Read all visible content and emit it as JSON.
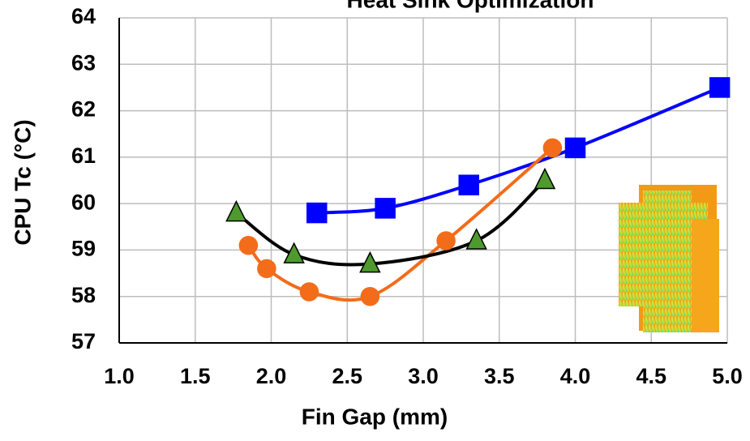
{
  "chart_data": {
    "type": "line",
    "title": "Heat Sink Optimization",
    "xlabel": "Fin Gap (mm)",
    "ylabel": "CPU Tc (°C)",
    "xlim": [
      1,
      5
    ],
    "ylim": [
      57,
      64
    ],
    "xticks": [
      {
        "value": 1,
        "label": "1.0"
      },
      {
        "value": 1.5,
        "label": "1.5"
      },
      {
        "value": 2,
        "label": "2.0"
      },
      {
        "value": 2.5,
        "label": "2.5"
      },
      {
        "value": 3,
        "label": "3.0"
      },
      {
        "value": 3.5,
        "label": "3.5"
      },
      {
        "value": 4,
        "label": "4.0"
      },
      {
        "value": 4.5,
        "label": "4.5"
      },
      {
        "value": 5,
        "label": "5.0"
      }
    ],
    "yticks": [
      57,
      58,
      59,
      60,
      61,
      62,
      63,
      64
    ],
    "grid": true,
    "series": [
      {
        "line_color": "#0000ff",
        "color": "#0000ff",
        "marker": "square",
        "x": [
          2.3,
          2.75,
          3.3,
          4.0,
          4.95
        ],
        "values": [
          59.8,
          59.9,
          60.4,
          61.2,
          62.5
        ]
      },
      {
        "line_color": "#f26c1a",
        "color": "#f26c1a",
        "marker": "circle",
        "x": [
          1.85,
          1.97,
          2.25,
          2.65,
          3.15,
          3.85
        ],
        "values": [
          59.1,
          58.6,
          58.1,
          58.0,
          59.2,
          61.2
        ]
      },
      {
        "line_color": "#000000",
        "color": "#4e9a2e",
        "marker": "triangle",
        "x": [
          1.77,
          2.15,
          2.65,
          3.35,
          3.8
        ],
        "values": [
          59.8,
          58.9,
          58.7,
          59.2,
          60.5
        ]
      }
    ]
  }
}
